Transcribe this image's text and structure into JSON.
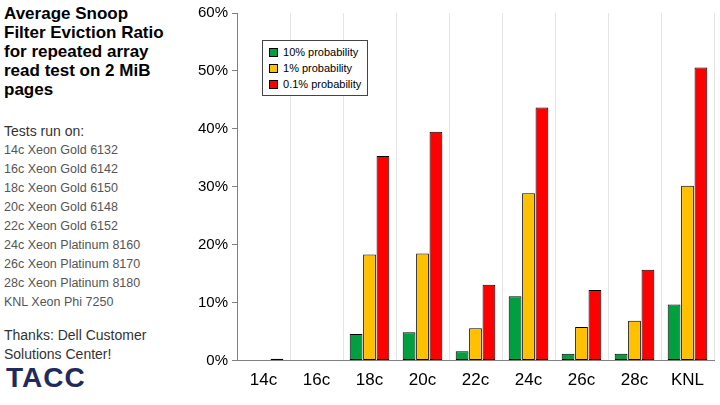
{
  "chart_data": {
    "type": "bar",
    "title": [
      "Average Snoop",
      "Filter Eviction Ratio",
      "for repeated array",
      "read test on 2 MiB",
      "pages"
    ],
    "annotations": {
      "tests_heading": "Tests run on:",
      "tests": [
        "14c Xeon Gold 6132",
        "16c Xeon Gold 6142",
        "18c Xeon Gold 6150",
        "20c Xeon Gold 6148",
        "22c Xeon Gold 6152",
        "24c Xeon Platinum 8160",
        "26c Xeon Platinum 8170",
        "28c Xeon Platinum 8180",
        "KNL Xeon Phi 7250"
      ],
      "thanks": "Thanks: Dell Customer Solutions Center!",
      "logo": "TACC"
    },
    "categories": [
      "14c",
      "16c",
      "18c",
      "20c",
      "22c",
      "24c",
      "26c",
      "28c",
      "KNL"
    ],
    "series": [
      {
        "name": "10% probability",
        "color": "#00a040",
        "values": [
          0,
          0,
          4.6,
          4.9,
          1.6,
          11.1,
          1.2,
          1.2,
          9.7
        ]
      },
      {
        "name": "1% probability",
        "color": "#ffc000",
        "values": [
          0,
          0,
          18.3,
          18.5,
          5.6,
          28.9,
          5.8,
          6.9,
          30.2
        ]
      },
      {
        "name": "0.1% probability",
        "color": "#ff0000",
        "values": [
          0.3,
          0,
          35.3,
          39.5,
          13.1,
          43.7,
          12.2,
          15.7,
          50.6
        ]
      }
    ],
    "ylim": [
      0,
      60
    ],
    "yticks": [
      {
        "value": 0,
        "label": "0%"
      },
      {
        "value": 10,
        "label": "10%"
      },
      {
        "value": 20,
        "label": "20%"
      },
      {
        "value": 30,
        "label": "30%"
      },
      {
        "value": 40,
        "label": "40%"
      },
      {
        "value": 50,
        "label": "50%"
      },
      {
        "value": 60,
        "label": "60%"
      }
    ],
    "grid": true,
    "legend": "upper left"
  }
}
